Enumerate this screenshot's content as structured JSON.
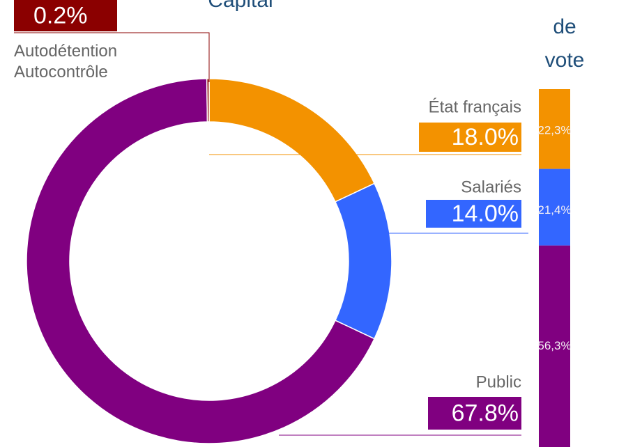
{
  "chart_data": [
    {
      "type": "pie",
      "title": "Capital",
      "donut": true,
      "categories": [
        "État français",
        "Salariés",
        "Public",
        "Autodétention\nAutocontrôle"
      ],
      "values": [
        18.0,
        14.0,
        67.8,
        0.2
      ],
      "value_labels": [
        "18.0%",
        "14.0%",
        "67.8%",
        "0.2%"
      ],
      "colors": [
        "#f39200",
        "#3366ff",
        "#800080",
        "#8b0000"
      ]
    },
    {
      "type": "bar",
      "stacked": true,
      "title": "de\nvote",
      "values": [
        22.3,
        21.4,
        56.3
      ],
      "value_labels": [
        "22,3%",
        "21,4%",
        "56,3%"
      ],
      "colors": [
        "#f39200",
        "#3366ff",
        "#800080"
      ]
    }
  ]
}
